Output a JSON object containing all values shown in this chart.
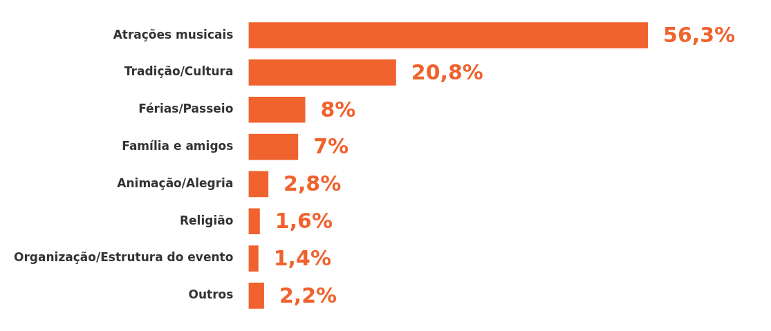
{
  "chart_data": {
    "type": "bar",
    "orientation": "horizontal",
    "categories": [
      "Atrações musicais",
      "Tradição/Cultura",
      "Férias/Passeio",
      "Família e amigos",
      "Animação/Alegria",
      "Religião",
      "Organização/Estrutura do evento",
      "Outros"
    ],
    "values": [
      56.3,
      20.8,
      8,
      7,
      2.8,
      1.6,
      1.4,
      2.2
    ],
    "color": "#f0622e",
    "value_labels": [
      "56,3%",
      "20,8%",
      "8%",
      "7%",
      "2,8%",
      "1,6%",
      "1,4%",
      "2,2%"
    ]
  }
}
